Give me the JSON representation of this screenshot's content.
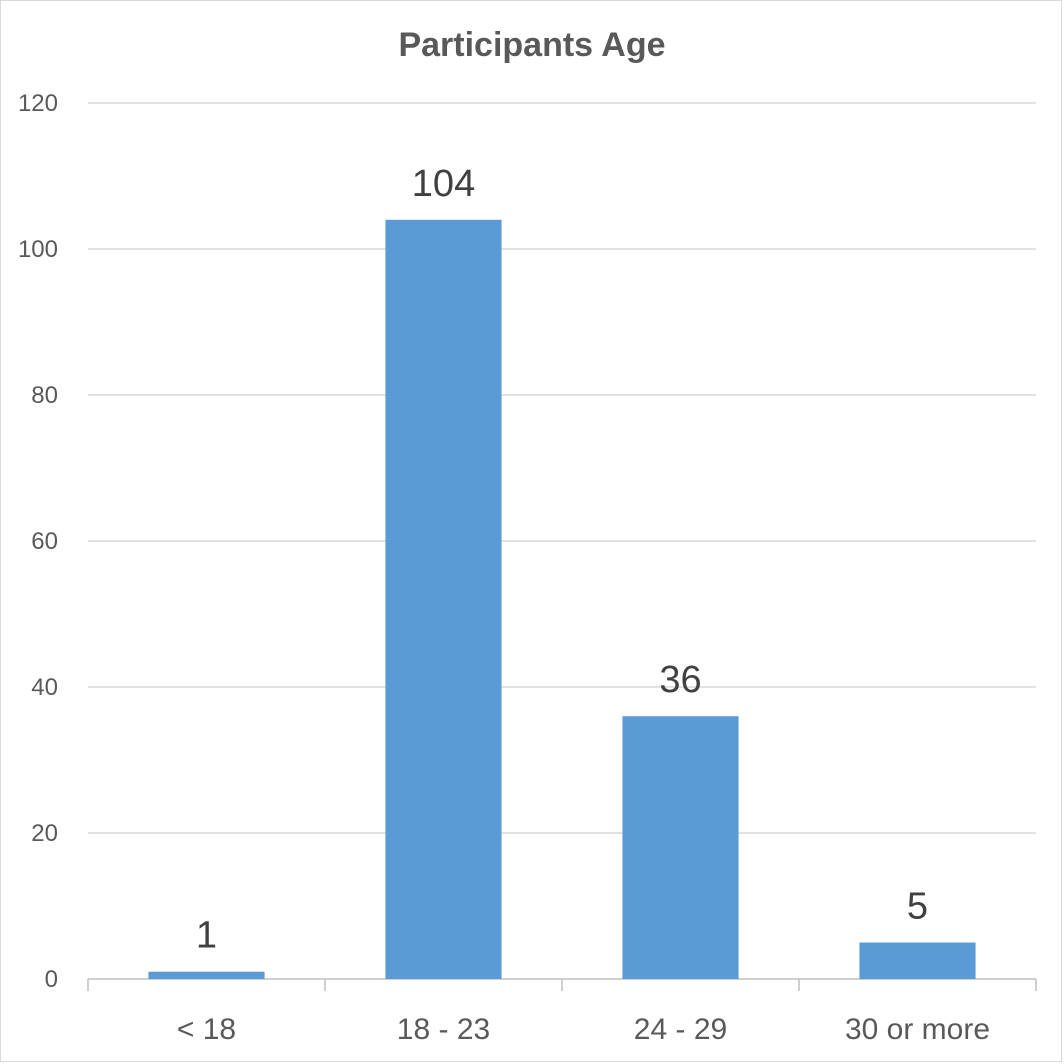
{
  "chart_data": {
    "type": "bar",
    "title": "Participants Age",
    "categories": [
      "< 18",
      "18 - 23",
      "24 - 29",
      "30 or more"
    ],
    "values": [
      1,
      104,
      36,
      5
    ],
    "data_labels": [
      "1",
      "104",
      "36",
      "5"
    ],
    "xlabel": "",
    "ylabel": "",
    "ylim": [
      0,
      120
    ],
    "yticks": [
      0,
      20,
      40,
      60,
      80,
      100,
      120
    ],
    "grid": true,
    "legend": "none",
    "bar_color": "#5b9bd5"
  }
}
